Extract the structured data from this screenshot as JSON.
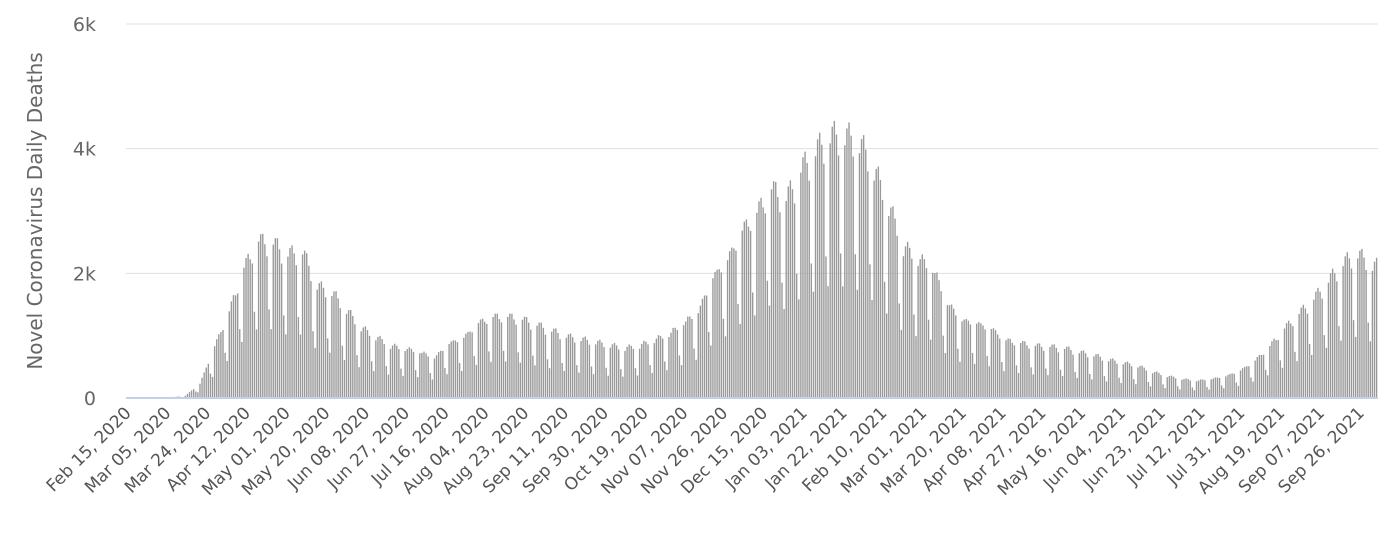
{
  "chart_data": {
    "type": "bar",
    "ylabel": "Novel Coronavirus Daily Deaths",
    "xlabel": "",
    "ylim": [
      0,
      6000
    ],
    "y_ticks": [
      0,
      2000,
      4000,
      6000
    ],
    "y_tick_labels": [
      "0",
      "2k",
      "4k",
      "6k"
    ],
    "x_start": "2020-02-15",
    "x_end": "2021-10-04",
    "x_tick_labels": [
      "Feb 15, 2020",
      "Mar 05, 2020",
      "Mar 24, 2020",
      "Apr 12, 2020",
      "May 01, 2020",
      "May 20, 2020",
      "Jun 08, 2020",
      "Jun 27, 2020",
      "Jul 16, 2020",
      "Aug 04, 2020",
      "Aug 23, 2020",
      "Sep 11, 2020",
      "Sep 30, 2020",
      "Oct 19, 2020",
      "Nov 07, 2020",
      "Nov 26, 2020",
      "Dec 15, 2020",
      "Jan 03, 2021",
      "Jan 22, 2021",
      "Feb 10, 2021",
      "Mar 01, 2021",
      "Mar 20, 2021",
      "Apr 08, 2021",
      "Apr 27, 2021",
      "May 16, 2021",
      "Jun 04, 2021",
      "Jun 23, 2021",
      "Jul 12, 2021",
      "Jul 31, 2021",
      "Aug 19, 2021",
      "Sep 07, 2021",
      "Sep 26, 2021"
    ],
    "weekly_peaks": [
      {
        "date": "2020-02-15",
        "value": 0
      },
      {
        "date": "2020-02-22",
        "value": 0
      },
      {
        "date": "2020-02-29",
        "value": 0
      },
      {
        "date": "2020-03-07",
        "value": 10
      },
      {
        "date": "2020-03-14",
        "value": 40
      },
      {
        "date": "2020-03-21",
        "value": 250
      },
      {
        "date": "2020-03-28",
        "value": 900
      },
      {
        "date": "2020-04-04",
        "value": 1500
      },
      {
        "date": "2020-04-11",
        "value": 2250
      },
      {
        "date": "2020-04-18",
        "value": 2700
      },
      {
        "date": "2020-04-25",
        "value": 2650
      },
      {
        "date": "2020-05-02",
        "value": 2450
      },
      {
        "date": "2020-05-09",
        "value": 2500
      },
      {
        "date": "2020-05-16",
        "value": 1900
      },
      {
        "date": "2020-05-23",
        "value": 1800
      },
      {
        "date": "2020-05-30",
        "value": 1500
      },
      {
        "date": "2020-06-06",
        "value": 1200
      },
      {
        "date": "2020-06-13",
        "value": 1050
      },
      {
        "date": "2020-06-20",
        "value": 900
      },
      {
        "date": "2020-06-27",
        "value": 850
      },
      {
        "date": "2020-07-04",
        "value": 800
      },
      {
        "date": "2020-07-11",
        "value": 700
      },
      {
        "date": "2020-07-18",
        "value": 950
      },
      {
        "date": "2020-07-25",
        "value": 1050
      },
      {
        "date": "2020-08-01",
        "value": 1300
      },
      {
        "date": "2020-08-08",
        "value": 1400
      },
      {
        "date": "2020-08-15",
        "value": 1400
      },
      {
        "date": "2020-08-22",
        "value": 1350
      },
      {
        "date": "2020-08-29",
        "value": 1250
      },
      {
        "date": "2020-09-05",
        "value": 1150
      },
      {
        "date": "2020-09-12",
        "value": 1050
      },
      {
        "date": "2020-09-19",
        "value": 1000
      },
      {
        "date": "2020-09-26",
        "value": 950
      },
      {
        "date": "2020-10-03",
        "value": 900
      },
      {
        "date": "2020-10-10",
        "value": 850
      },
      {
        "date": "2020-10-17",
        "value": 900
      },
      {
        "date": "2020-10-24",
        "value": 1000
      },
      {
        "date": "2020-10-31",
        "value": 1100
      },
      {
        "date": "2020-11-07",
        "value": 1300
      },
      {
        "date": "2020-11-14",
        "value": 1500
      },
      {
        "date": "2020-11-21",
        "value": 2100
      },
      {
        "date": "2020-11-28",
        "value": 2400
      },
      {
        "date": "2020-12-05",
        "value": 2900
      },
      {
        "date": "2020-12-12",
        "value": 3200
      },
      {
        "date": "2020-12-19",
        "value": 3600
      },
      {
        "date": "2020-12-26",
        "value": 3400
      },
      {
        "date": "2021-01-02",
        "value": 3900
      },
      {
        "date": "2021-01-09",
        "value": 4200
      },
      {
        "date": "2021-01-16",
        "value": 4450
      },
      {
        "date": "2021-01-23",
        "value": 4450
      },
      {
        "date": "2021-01-30",
        "value": 4350
      },
      {
        "date": "2021-02-06",
        "value": 3900
      },
      {
        "date": "2021-02-13",
        "value": 3300
      },
      {
        "date": "2021-02-20",
        "value": 2600
      },
      {
        "date": "2021-02-27",
        "value": 2400
      },
      {
        "date": "2021-03-06",
        "value": 2250
      },
      {
        "date": "2021-03-13",
        "value": 1650
      },
      {
        "date": "2021-03-20",
        "value": 1350
      },
      {
        "date": "2021-03-27",
        "value": 1300
      },
      {
        "date": "2021-04-03",
        "value": 1200
      },
      {
        "date": "2021-04-10",
        "value": 1000
      },
      {
        "date": "2021-04-17",
        "value": 950
      },
      {
        "date": "2021-04-24",
        "value": 900
      },
      {
        "date": "2021-05-01",
        "value": 880
      },
      {
        "date": "2021-05-08",
        "value": 850
      },
      {
        "date": "2021-05-15",
        "value": 780
      },
      {
        "date": "2021-05-22",
        "value": 730
      },
      {
        "date": "2021-05-29",
        "value": 650
      },
      {
        "date": "2021-06-05",
        "value": 600
      },
      {
        "date": "2021-06-12",
        "value": 550
      },
      {
        "date": "2021-06-19",
        "value": 450
      },
      {
        "date": "2021-06-26",
        "value": 380
      },
      {
        "date": "2021-07-03",
        "value": 330
      },
      {
        "date": "2021-07-10",
        "value": 300
      },
      {
        "date": "2021-07-17",
        "value": 330
      },
      {
        "date": "2021-07-24",
        "value": 380
      },
      {
        "date": "2021-07-31",
        "value": 480
      },
      {
        "date": "2021-08-07",
        "value": 650
      },
      {
        "date": "2021-08-14",
        "value": 900
      },
      {
        "date": "2021-08-21",
        "value": 1200
      },
      {
        "date": "2021-08-28",
        "value": 1450
      },
      {
        "date": "2021-09-04",
        "value": 1700
      },
      {
        "date": "2021-09-11",
        "value": 2000
      },
      {
        "date": "2021-09-18",
        "value": 2300
      },
      {
        "date": "2021-09-25",
        "value": 2450
      },
      {
        "date": "2021-10-02",
        "value": 2250
      }
    ],
    "colors": {
      "bar": "#999999",
      "grid": "#e0e0e0",
      "baseline": "#c5d0e6",
      "text": "#666666"
    }
  }
}
